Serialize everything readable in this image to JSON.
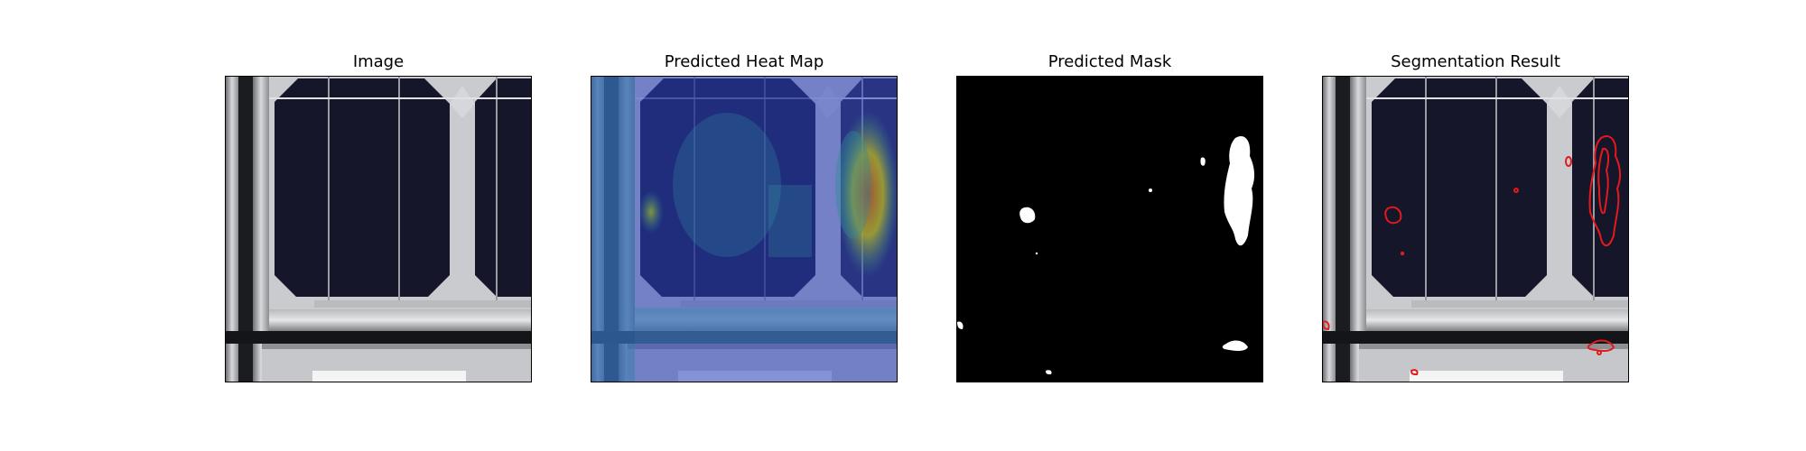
{
  "figure": {
    "panels": [
      {
        "title": "Image",
        "content": "solar-cell-photo"
      },
      {
        "title": "Predicted Heat Map",
        "content": "heat-map-overlay"
      },
      {
        "title": "Predicted Mask",
        "content": "binary-mask"
      },
      {
        "title": "Segmentation Result",
        "content": "segmentation-overlay"
      }
    ],
    "colors": {
      "contour": "#e31a1c",
      "mask_foreground": "#ffffff",
      "mask_background": "#000000",
      "cell": "#16162a",
      "frame_metal": "#c9cbcf"
    }
  }
}
